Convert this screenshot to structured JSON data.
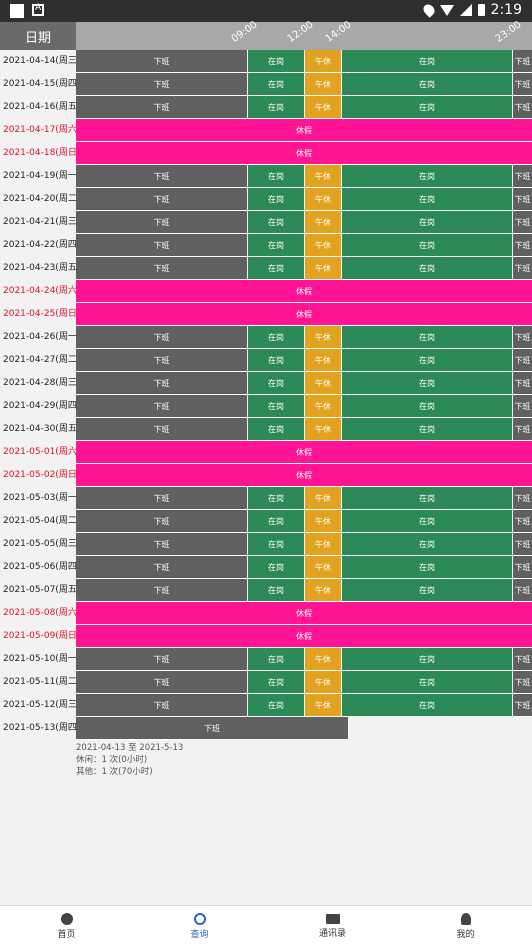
{
  "statusbar": {
    "time": "2:19"
  },
  "header": {
    "date_col": "日期",
    "ticks": [
      "09:00",
      "12:00",
      "14:00",
      "23:00"
    ]
  },
  "labels": {
    "off": "下班",
    "work": "在岗",
    "lunch": "午休",
    "holiday": "休假"
  },
  "rows": [
    {
      "date": "2021-04-14(周三)",
      "type": "work"
    },
    {
      "date": "2021-04-15(周四)",
      "type": "work"
    },
    {
      "date": "2021-04-16(周五)",
      "type": "work"
    },
    {
      "date": "2021-04-17(周六)",
      "type": "holiday"
    },
    {
      "date": "2021-04-18(周日)",
      "type": "holiday"
    },
    {
      "date": "2021-04-19(周一)",
      "type": "work"
    },
    {
      "date": "2021-04-20(周二)",
      "type": "work"
    },
    {
      "date": "2021-04-21(周三)",
      "type": "work"
    },
    {
      "date": "2021-04-22(周四)",
      "type": "work"
    },
    {
      "date": "2021-04-23(周五)",
      "type": "work"
    },
    {
      "date": "2021-04-24(周六)",
      "type": "holiday"
    },
    {
      "date": "2021-04-25(周日)",
      "type": "holiday"
    },
    {
      "date": "2021-04-26(周一)",
      "type": "work"
    },
    {
      "date": "2021-04-27(周二)",
      "type": "work"
    },
    {
      "date": "2021-04-28(周三)",
      "type": "work"
    },
    {
      "date": "2021-04-29(周四)",
      "type": "work"
    },
    {
      "date": "2021-04-30(周五)",
      "type": "work"
    },
    {
      "date": "2021-05-01(周六)",
      "type": "holiday"
    },
    {
      "date": "2021-05-02(周日)",
      "type": "holiday"
    },
    {
      "date": "2021-05-03(周一)",
      "type": "work"
    },
    {
      "date": "2021-05-04(周二)",
      "type": "work"
    },
    {
      "date": "2021-05-05(周三)",
      "type": "work"
    },
    {
      "date": "2021-05-06(周四)",
      "type": "work"
    },
    {
      "date": "2021-05-07(周五)",
      "type": "work"
    },
    {
      "date": "2021-05-08(周六)",
      "type": "holiday"
    },
    {
      "date": "2021-05-09(周日)",
      "type": "holiday"
    },
    {
      "date": "2021-05-10(周一)",
      "type": "work"
    },
    {
      "date": "2021-05-11(周二)",
      "type": "work"
    },
    {
      "date": "2021-05-12(周三)",
      "type": "work"
    },
    {
      "date": "2021-05-13(周四)",
      "type": "partial"
    }
  ],
  "summary": {
    "range": "2021-04-13 至 2021-5-13",
    "leave": "休闲：1 次(0小时)",
    "other": "其他：1 次(70小时)"
  },
  "tabs": [
    {
      "label": "首页",
      "icon": "home-icon"
    },
    {
      "label": "查询",
      "icon": "search-icon",
      "active": true
    },
    {
      "label": "通讯录",
      "icon": "contacts-icon"
    },
    {
      "label": "我的",
      "icon": "user-icon"
    }
  ]
}
